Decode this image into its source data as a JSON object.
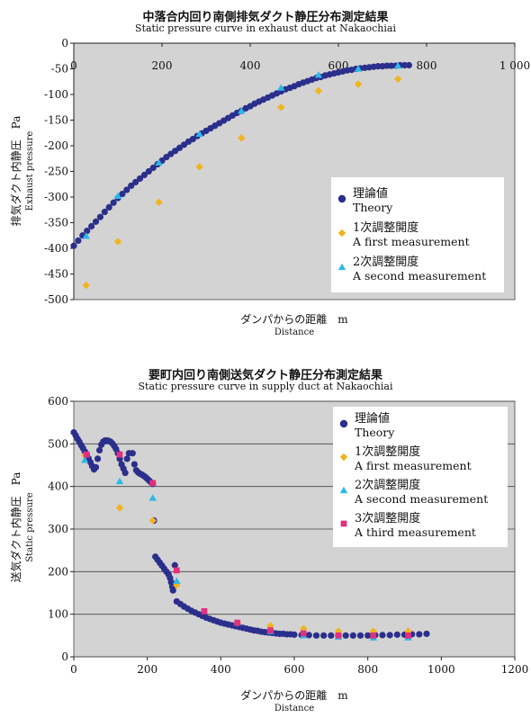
{
  "chart_data": [
    {
      "type": "scatter",
      "title": "中落合内回り南側排気ダクト静圧分布測定結果",
      "subtitle": "Static pressure curve in exhaust duct at Nakaochiai",
      "xlabel": "ダンパからの距離　m",
      "xlabel_en": "Distance",
      "ylabel": "排気ダクト内静圧　Pa",
      "ylabel_en": "Exhaust pressure",
      "xlim": [
        0,
        1000
      ],
      "ylim": [
        -500,
        0
      ],
      "x_ticks": [
        "0",
        "200",
        "400",
        "600",
        "800",
        "1 000"
      ],
      "y_ticks": [
        "0",
        "-50",
        "-100",
        "-150",
        "-200",
        "-250",
        "-300",
        "-350",
        "-400",
        "-450",
        "-500"
      ],
      "x_axis_position": "top",
      "grid": false,
      "legend_position": "bottom-right",
      "series": [
        {
          "name": "理論値",
          "name_en": "Theory",
          "marker": "circle",
          "color": "#2b2f8c",
          "points": [
            [
              0,
              -395
            ],
            [
              10,
              -385
            ],
            [
              20,
              -375
            ],
            [
              30,
              -366
            ],
            [
              40,
              -357
            ],
            [
              50,
              -348
            ],
            [
              60,
              -339
            ],
            [
              70,
              -329
            ],
            [
              80,
              -320
            ],
            [
              90,
              -311
            ],
            [
              100,
              -302
            ],
            [
              110,
              -294
            ],
            [
              120,
              -286
            ],
            [
              130,
              -278
            ],
            [
              140,
              -271
            ],
            [
              150,
              -264
            ],
            [
              160,
              -257
            ],
            [
              170,
              -250
            ],
            [
              180,
              -243
            ],
            [
              190,
              -236
            ],
            [
              200,
              -229
            ],
            [
              210,
              -222
            ],
            [
              220,
              -216
            ],
            [
              230,
              -210
            ],
            [
              240,
              -204
            ],
            [
              250,
              -198
            ],
            [
              260,
              -192
            ],
            [
              270,
              -187
            ],
            [
              280,
              -181
            ],
            [
              290,
              -176
            ],
            [
              300,
              -171
            ],
            [
              310,
              -166
            ],
            [
              320,
              -161
            ],
            [
              330,
              -156
            ],
            [
              340,
              -151
            ],
            [
              350,
              -146
            ],
            [
              360,
              -141
            ],
            [
              370,
              -136
            ],
            [
              380,
              -132
            ],
            [
              390,
              -127
            ],
            [
              400,
              -123
            ],
            [
              410,
              -118
            ],
            [
              420,
              -114
            ],
            [
              430,
              -110
            ],
            [
              440,
              -106
            ],
            [
              450,
              -102
            ],
            [
              460,
              -98
            ],
            [
              470,
              -94
            ],
            [
              480,
              -90
            ],
            [
              490,
              -87
            ],
            [
              500,
              -84
            ],
            [
              510,
              -80
            ],
            [
              520,
              -77
            ],
            [
              530,
              -74
            ],
            [
              540,
              -71
            ],
            [
              550,
              -68
            ],
            [
              560,
              -66
            ],
            [
              570,
              -63
            ],
            [
              580,
              -61
            ],
            [
              590,
              -59
            ],
            [
              600,
              -57
            ],
            [
              610,
              -55
            ],
            [
              620,
              -53
            ],
            [
              630,
              -52
            ],
            [
              640,
              -50
            ],
            [
              650,
              -49
            ],
            [
              660,
              -48
            ],
            [
              670,
              -47
            ],
            [
              680,
              -46
            ],
            [
              690,
              -45
            ],
            [
              700,
              -45
            ],
            [
              710,
              -44
            ],
            [
              720,
              -44
            ],
            [
              730,
              -44
            ],
            [
              740,
              -43
            ],
            [
              750,
              -43
            ],
            [
              760,
              -43
            ]
          ]
        },
        {
          "name": "1次調整開度",
          "name_en": "A first measurement",
          "marker": "diamond",
          "color": "#f0b41e",
          "points": [
            [
              28,
              -472
            ],
            [
              100,
              -387
            ],
            [
              193,
              -310
            ],
            [
              285,
              -241
            ],
            [
              380,
              -185
            ],
            [
              470,
              -125
            ],
            [
              555,
              -93
            ],
            [
              645,
              -80
            ],
            [
              735,
              -70
            ]
          ]
        },
        {
          "name": "2次調整開度",
          "name_en": "A second measurement",
          "marker": "triangle",
          "color": "#2eb7e8",
          "points": [
            [
              28,
              -376
            ],
            [
              100,
              -298
            ],
            [
              193,
              -233
            ],
            [
              285,
              -177
            ],
            [
              380,
              -132
            ],
            [
              470,
              -87
            ],
            [
              555,
              -62
            ],
            [
              645,
              -50
            ],
            [
              735,
              -44
            ]
          ]
        }
      ]
    },
    {
      "type": "scatter",
      "title": "要町内回り南側送気ダクト静圧分布測定結果",
      "subtitle": "Static pressure curve in supply duct at Nakaochiai",
      "xlabel": "ダンパからの距離　m",
      "xlabel_en": "Distance",
      "ylabel": "送気ダクト内静圧　Pa",
      "ylabel_en": "Static pressure",
      "xlim": [
        0,
        1200
      ],
      "ylim": [
        0,
        600
      ],
      "x_ticks": [
        "0",
        "200",
        "400",
        "600",
        "800",
        "1000",
        "1200"
      ],
      "y_ticks": [
        "0",
        "100",
        "200",
        "300",
        "400",
        "500",
        "600"
      ],
      "grid": true,
      "legend_position": "top-right",
      "series": [
        {
          "name": "理論値",
          "name_en": "Theory",
          "marker": "circle",
          "color": "#2b2f8c",
          "points": [
            [
              0,
              527
            ],
            [
              5,
              520
            ],
            [
              10,
              512
            ],
            [
              15,
              505
            ],
            [
              20,
              497
            ],
            [
              25,
              490
            ],
            [
              30,
              482
            ],
            [
              35,
              474
            ],
            [
              40,
              466
            ],
            [
              45,
              457
            ],
            [
              50,
              448
            ],
            [
              55,
              440
            ],
            [
              60,
              445
            ],
            [
              65,
              465
            ],
            [
              70,
              485
            ],
            [
              75,
              498
            ],
            [
              80,
              505
            ],
            [
              85,
              508
            ],
            [
              90,
              508
            ],
            [
              95,
              507
            ],
            [
              100,
              505
            ],
            [
              105,
              501
            ],
            [
              110,
              495
            ],
            [
              115,
              488
            ],
            [
              120,
              478
            ],
            [
              125,
              465
            ],
            [
              130,
              452
            ],
            [
              135,
              442
            ],
            [
              140,
              432
            ],
            [
              145,
              465
            ],
            [
              150,
              478
            ],
            [
              160,
              478
            ],
            [
              165,
              452
            ],
            [
              170,
              438
            ],
            [
              175,
              433
            ],
            [
              180,
              430
            ],
            [
              185,
              428
            ],
            [
              190,
              425
            ],
            [
              195,
              422
            ],
            [
              200,
              418
            ],
            [
              205,
              414
            ],
            [
              210,
              410
            ],
            [
              215,
              406
            ],
            [
              218,
              320
            ],
            [
              222,
              235
            ],
            [
              228,
              228
            ],
            [
              234,
              221
            ],
            [
              240,
              214
            ],
            [
              246,
              207
            ],
            [
              252,
              200
            ],
            [
              258,
              193
            ],
            [
              262,
              185
            ],
            [
              265,
              175
            ],
            [
              268,
              165
            ],
            [
              270,
              156
            ],
            [
              275,
              215
            ],
            [
              280,
              130
            ],
            [
              290,
              124
            ],
            [
              300,
              118
            ],
            [
              310,
              113
            ],
            [
              320,
              108
            ],
            [
              330,
              104
            ],
            [
              340,
              100
            ],
            [
              350,
              96
            ],
            [
              360,
              92
            ],
            [
              370,
              89
            ],
            [
              380,
              86
            ],
            [
              390,
              83
            ],
            [
              400,
              80
            ],
            [
              410,
              78
            ],
            [
              420,
              76
            ],
            [
              430,
              74
            ],
            [
              440,
              72
            ],
            [
              450,
              70
            ],
            [
              460,
              68
            ],
            [
              470,
              66
            ],
            [
              480,
              64
            ],
            [
              490,
              62
            ],
            [
              500,
              61
            ],
            [
              510,
              59
            ],
            [
              520,
              58
            ],
            [
              530,
              57
            ],
            [
              540,
              56
            ],
            [
              550,
              55
            ],
            [
              560,
              54
            ],
            [
              570,
              54
            ],
            [
              580,
              53
            ],
            [
              590,
              53
            ],
            [
              600,
              52
            ],
            [
              620,
              51
            ],
            [
              640,
              51
            ],
            [
              660,
              50
            ],
            [
              680,
              50
            ],
            [
              700,
              50
            ],
            [
              720,
              50
            ],
            [
              740,
              50
            ],
            [
              760,
              50
            ],
            [
              780,
              50
            ],
            [
              800,
              50
            ],
            [
              820,
              51
            ],
            [
              840,
              51
            ],
            [
              860,
              51
            ],
            [
              880,
              52
            ],
            [
              900,
              52
            ],
            [
              920,
              53
            ],
            [
              940,
              53
            ],
            [
              960,
              54
            ]
          ]
        },
        {
          "name": "1次調整開度",
          "name_en": "A first measurement",
          "marker": "diamond",
          "color": "#f0b41e",
          "points": [
            [
              30,
              473
            ],
            [
              125,
              350
            ],
            [
              215,
              320
            ],
            [
              280,
              168
            ],
            [
              445,
              80
            ],
            [
              535,
              73
            ],
            [
              625,
              66
            ],
            [
              720,
              60
            ],
            [
              815,
              60
            ],
            [
              910,
              60
            ]
          ]
        },
        {
          "name": "2次調整開度",
          "name_en": "A second measurement",
          "marker": "triangle",
          "color": "#2eb7e8",
          "points": [
            [
              30,
              462
            ],
            [
              125,
              412
            ],
            [
              215,
              373
            ],
            [
              280,
              178
            ],
            [
              445,
              80
            ],
            [
              535,
              60
            ],
            [
              625,
              50
            ],
            [
              720,
              47
            ],
            [
              815,
              45
            ],
            [
              910,
              45
            ]
          ]
        },
        {
          "name": "3次調整開度",
          "name_en": "A third measurement",
          "marker": "square",
          "color": "#e0307e",
          "points": [
            [
              35,
              475
            ],
            [
              125,
              475
            ],
            [
              215,
              408
            ],
            [
              280,
              203
            ],
            [
              355,
              107
            ],
            [
              445,
              80
            ],
            [
              535,
              62
            ],
            [
              625,
              55
            ],
            [
              720,
              50
            ],
            [
              815,
              50
            ],
            [
              910,
              50
            ]
          ]
        }
      ]
    }
  ]
}
